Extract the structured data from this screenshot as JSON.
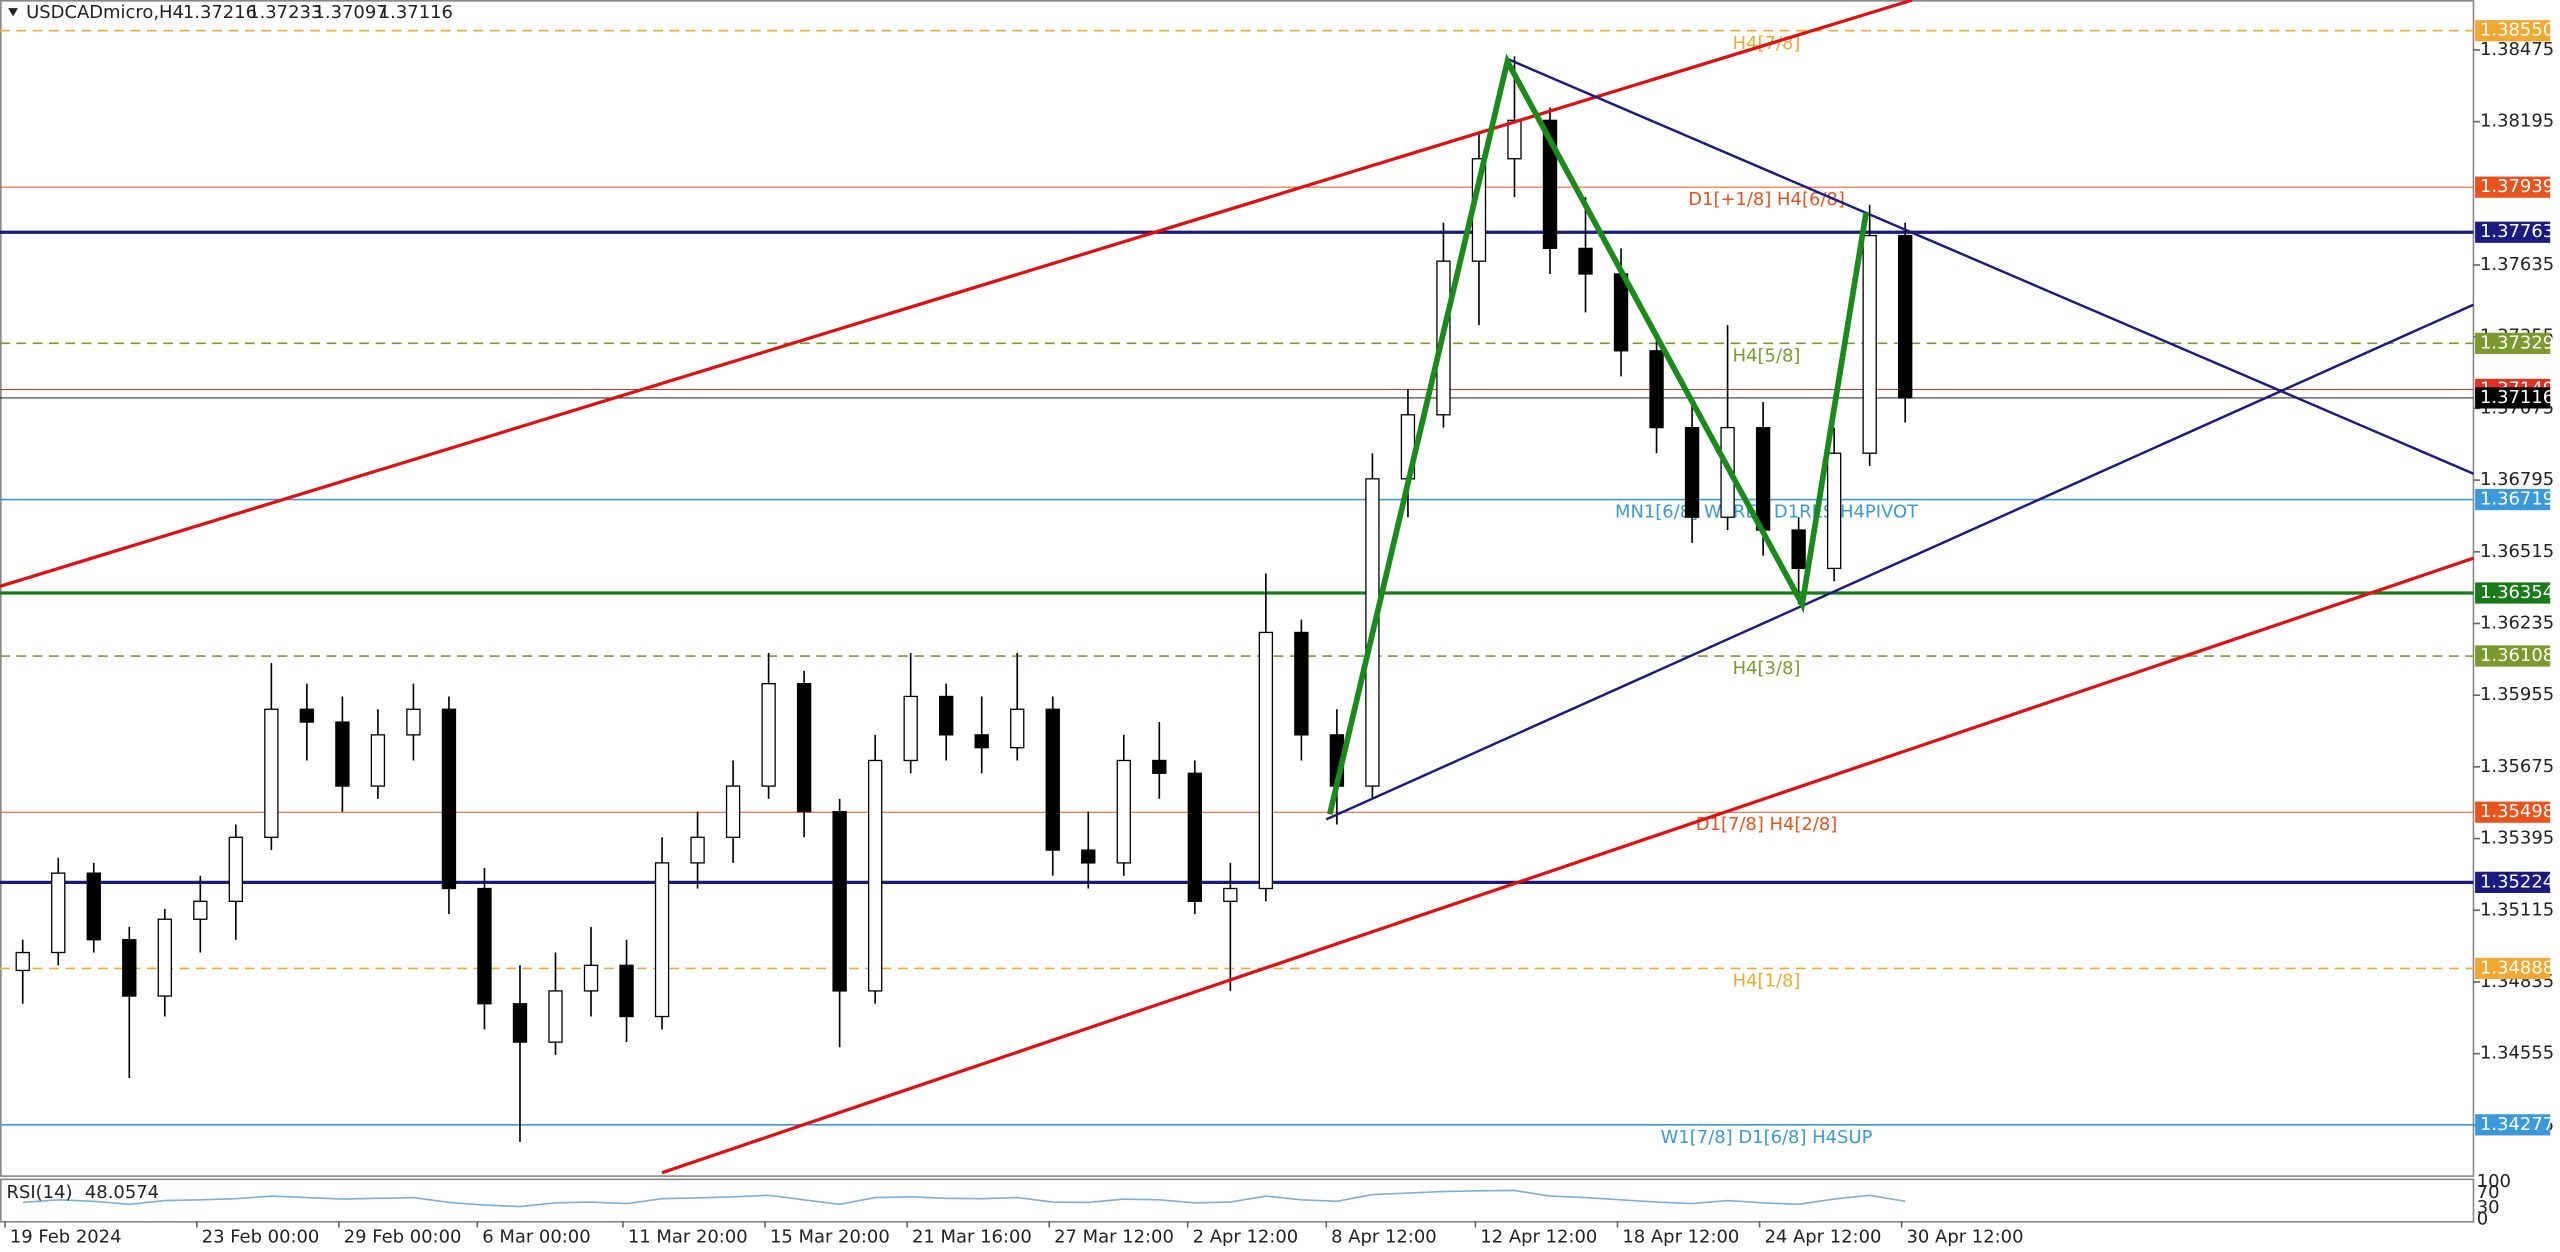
{
  "chart_data": {
    "type": "candlestick",
    "title": "USDCADmicro,H4",
    "quote": [
      1.37216,
      1.37233,
      1.37097,
      1.37116
    ],
    "ohlc": [
      [
        1.3488,
        1.35,
        1.3475,
        1.3495
      ],
      [
        1.3495,
        1.3532,
        1.349,
        1.3526
      ],
      [
        1.3526,
        1.353,
        1.3495,
        1.35
      ],
      [
        1.35,
        1.3505,
        1.3446,
        1.3478
      ],
      [
        1.3478,
        1.3512,
        1.347,
        1.3508
      ],
      [
        1.3508,
        1.3525,
        1.3495,
        1.3515
      ],
      [
        1.3515,
        1.3545,
        1.35,
        1.354
      ],
      [
        1.354,
        1.3608,
        1.3535,
        1.359
      ],
      [
        1.359,
        1.36,
        1.357,
        1.3585
      ],
      [
        1.3585,
        1.3595,
        1.355,
        1.356
      ],
      [
        1.356,
        1.359,
        1.3555,
        1.358
      ],
      [
        1.358,
        1.36,
        1.357,
        1.359
      ],
      [
        1.359,
        1.3595,
        1.351,
        1.352
      ],
      [
        1.352,
        1.3528,
        1.3465,
        1.3475
      ],
      [
        1.3475,
        1.349,
        1.3421,
        1.346
      ],
      [
        1.346,
        1.3495,
        1.3455,
        1.348
      ],
      [
        1.348,
        1.3505,
        1.347,
        1.349
      ],
      [
        1.349,
        1.35,
        1.346,
        1.347
      ],
      [
        1.347,
        1.354,
        1.3465,
        1.353
      ],
      [
        1.353,
        1.355,
        1.352,
        1.354
      ],
      [
        1.354,
        1.357,
        1.353,
        1.356
      ],
      [
        1.356,
        1.3612,
        1.3555,
        1.36
      ],
      [
        1.36,
        1.3605,
        1.354,
        1.355
      ],
      [
        1.355,
        1.3555,
        1.3458,
        1.348
      ],
      [
        1.348,
        1.358,
        1.3475,
        1.357
      ],
      [
        1.357,
        1.3612,
        1.3565,
        1.3595
      ],
      [
        1.3595,
        1.36,
        1.357,
        1.358
      ],
      [
        1.358,
        1.3595,
        1.3565,
        1.3575
      ],
      [
        1.3575,
        1.3612,
        1.357,
        1.359
      ],
      [
        1.359,
        1.3595,
        1.3525,
        1.3535
      ],
      [
        1.3535,
        1.355,
        1.352,
        1.353
      ],
      [
        1.353,
        1.358,
        1.3525,
        1.357
      ],
      [
        1.357,
        1.3585,
        1.3555,
        1.3565
      ],
      [
        1.3565,
        1.357,
        1.351,
        1.3515
      ],
      [
        1.3515,
        1.353,
        1.348,
        1.352
      ],
      [
        1.352,
        1.3643,
        1.3515,
        1.362
      ],
      [
        1.362,
        1.3625,
        1.357,
        1.358
      ],
      [
        1.358,
        1.359,
        1.3545,
        1.356
      ],
      [
        1.356,
        1.369,
        1.3555,
        1.368
      ],
      [
        1.368,
        1.3715,
        1.3665,
        1.3705
      ],
      [
        1.3705,
        1.378,
        1.37,
        1.3765
      ],
      [
        1.3765,
        1.3815,
        1.374,
        1.3805
      ],
      [
        1.3805,
        1.3845,
        1.379,
        1.382
      ],
      [
        1.382,
        1.3825,
        1.376,
        1.377
      ],
      [
        1.377,
        1.379,
        1.3745,
        1.376
      ],
      [
        1.376,
        1.377,
        1.372,
        1.373
      ],
      [
        1.373,
        1.3735,
        1.369,
        1.37
      ],
      [
        1.37,
        1.371,
        1.3655,
        1.3665
      ],
      [
        1.3665,
        1.374,
        1.366,
        1.37
      ],
      [
        1.37,
        1.371,
        1.365,
        1.366
      ],
      [
        1.366,
        1.3665,
        1.3631,
        1.3645
      ],
      [
        1.3645,
        1.37,
        1.364,
        1.369
      ],
      [
        1.369,
        1.3787,
        1.3685,
        1.3775
      ],
      [
        1.3775,
        1.378,
        1.3702,
        1.37116
      ]
    ],
    "xlim": [
      -0.64,
      69
    ],
    "xticks": [
      {
        "value": -0.5,
        "label": "19 Feb 2024"
      },
      {
        "value": 4.9,
        "label": "23 Feb 00:00"
      },
      {
        "value": 8.9,
        "label": "29 Feb 00:00"
      },
      {
        "value": 12.8,
        "label": "6 Mar 00:00"
      },
      {
        "value": 16.9,
        "label": "11 Mar 20:00"
      },
      {
        "value": 20.9,
        "label": "15 Mar 20:00"
      },
      {
        "value": 24.9,
        "label": "21 Mar 16:00"
      },
      {
        "value": 28.9,
        "label": "27 Mar 12:00"
      },
      {
        "value": 32.8,
        "label": "2 Apr 12:00"
      },
      {
        "value": 36.7,
        "label": "8 Apr 12:00"
      },
      {
        "value": 40.9,
        "label": "12 Apr 12:00"
      },
      {
        "value": 44.9,
        "label": "18 Apr 12:00"
      },
      {
        "value": 48.9,
        "label": "24 Apr 12:00"
      },
      {
        "value": 52.9,
        "label": "30 Apr 12:00"
      }
    ],
    "ylim": [
      1.3408,
      1.3867
    ],
    "yticks": [
      1.38475,
      1.38195,
      1.37635,
      1.37355,
      1.37075,
      1.36795,
      1.36515,
      1.36235,
      1.35955,
      1.35675,
      1.35395,
      1.35115,
      1.34835,
      1.34555,
      1.34275
    ],
    "levels": [
      {
        "price": {
          "value": 1.3855,
          "label": "1.38550"
        },
        "label": "H4[7/8]",
        "color": "#f0a830",
        "dash": true,
        "width": 1
      },
      {
        "price": 1.37939,
        "label": "D1[+1/8] H4[6/8]",
        "color": "#e8531e",
        "dash": false,
        "width": 0.6
      },
      {
        "price": 1.37763,
        "color": "#1a1a80",
        "dash": false,
        "width": 2
      },
      {
        "price": 1.37329,
        "label": "H4[5/8]",
        "color": "#7a9a2e",
        "dash": true,
        "width": 1
      },
      {
        "price": 1.37149,
        "color": "#e0301e",
        "dash": false,
        "width": 0.6
      },
      {
        "price": 1.37116,
        "color": "#000000",
        "dash": false,
        "width": 0.5
      },
      {
        "price": 1.36719,
        "label": "MN1[6/8] W1RES D1RES H4PIVOT",
        "color": "#3a9ad9",
        "dash": false,
        "width": 1
      },
      {
        "price": 1.36354,
        "color": "#1a7a1a",
        "dash": false,
        "width": 2
      },
      {
        "price": 1.36108,
        "label": "H4[3/8]",
        "color": "#7a9a2e",
        "dash": true,
        "width": 1
      },
      {
        "price": 1.35498,
        "label": "D1[7/8] H4[2/8]",
        "color": "#e8531e",
        "dash": false,
        "width": 0.6
      },
      {
        "price": 1.35224,
        "color": "#1a1a80",
        "dash": false,
        "width": 2
      },
      {
        "price": 1.34888,
        "label": "H4[1/8]",
        "color": "#f0a830",
        "dash": true,
        "width": 1
      },
      {
        "price": 1.34277,
        "label": "W1[7/8] D1[6/8] H4SUP",
        "color": "#3a9ad9",
        "dash": false,
        "width": 1
      }
    ],
    "trendlines": [
      {
        "color": "#e01010",
        "width": 2,
        "points": [
          [
            -0.64,
            1.3638
          ],
          [
            53.2,
            1.3867
          ]
        ]
      },
      {
        "color": "#e01010",
        "width": 2,
        "points": [
          [
            18,
            1.3409
          ],
          [
            69,
            1.3649
          ]
        ]
      },
      {
        "color": "#1a1a80",
        "width": 1.5,
        "points": [
          [
            41.8,
            1.3844
          ],
          [
            69,
            1.3682
          ]
        ]
      },
      {
        "color": "#1a1a80",
        "width": 1.5,
        "points": [
          [
            36.7,
            1.3547
          ],
          [
            69,
            1.3748
          ]
        ]
      },
      {
        "color": "#1a8a1a",
        "width": 3.5,
        "points": [
          [
            36.8,
            1.3549
          ],
          [
            41.8,
            1.3843
          ],
          [
            50.1,
            1.3631
          ],
          [
            51.9,
            1.3784
          ]
        ]
      }
    ],
    "rsi": {
      "label": "RSI(14)",
      "value": 48.0574,
      "ylim": [
        0,
        100
      ],
      "yticks": [
        0,
        30,
        70,
        100
      ],
      "color": "#7ab0d8",
      "values": [
        45,
        52,
        48,
        40,
        50,
        52,
        55,
        62,
        58,
        54,
        56,
        58,
        45,
        38,
        34,
        44,
        46,
        42,
        55,
        57,
        60,
        64,
        52,
        40,
        58,
        60,
        56,
        55,
        58,
        46,
        45,
        54,
        52,
        44,
        46,
        62,
        52,
        48,
        66,
        70,
        74,
        76,
        77,
        62,
        58,
        52,
        46,
        42,
        50,
        44,
        40,
        54,
        64,
        48
      ]
    }
  }
}
